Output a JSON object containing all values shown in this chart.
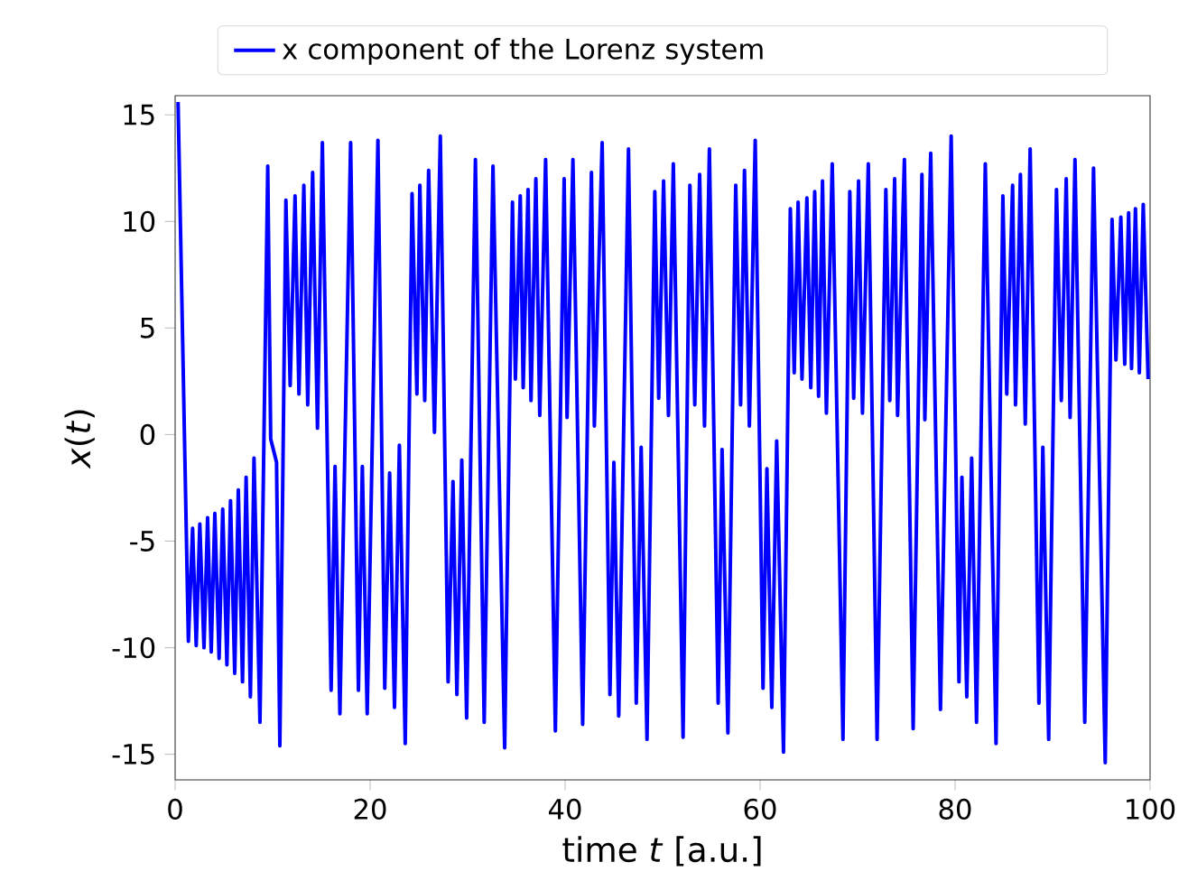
{
  "chart_data": {
    "type": "line",
    "xlabel": "time *t* [a.u.]",
    "ylabel": "*x*(*t*)",
    "xlim": [
      0,
      100
    ],
    "ylim": [
      -16.2,
      15.9
    ],
    "xticks": [
      0,
      20,
      40,
      60,
      80,
      100
    ],
    "yticks": [
      -15,
      -10,
      -5,
      0,
      5,
      10,
      15
    ],
    "legend": "top",
    "grid": false,
    "x": [
      0.3,
      1.36,
      1.79,
      2.16,
      2.53,
      2.96,
      3.33,
      3.7,
      4.07,
      4.51,
      4.88,
      5.31,
      5.68,
      6.11,
      6.48,
      6.91,
      7.28,
      7.72,
      8.09,
      8.7,
      9.5,
      9.8,
      10.4,
      10.74,
      11.36,
      11.8,
      12.3,
      12.7,
      13.2,
      13.6,
      14.1,
      14.6,
      15.1,
      16.0,
      16.4,
      16.9,
      18.0,
      18.8,
      19.2,
      19.7,
      20.8,
      21.5,
      22.0,
      22.5,
      23.0,
      23.6,
      24.3,
      24.8,
      25.1,
      25.6,
      26.0,
      26.6,
      27.2,
      28.0,
      28.5,
      28.9,
      29.4,
      29.9,
      30.8,
      31.7,
      32.6,
      33.8,
      34.6,
      34.9,
      35.4,
      35.7,
      36.2,
      36.5,
      37.0,
      37.4,
      38.0,
      39.0,
      39.9,
      40.2,
      40.8,
      41.8,
      42.7,
      43.0,
      43.8,
      44.6,
      45.0,
      45.5,
      46.5,
      47.3,
      47.8,
      48.4,
      49.2,
      49.6,
      50.1,
      50.6,
      51.1,
      52.1,
      52.8,
      53.3,
      53.8,
      54.3,
      54.8,
      55.7,
      56.1,
      56.7,
      57.5,
      58.0,
      58.4,
      58.9,
      59.5,
      60.3,
      60.7,
      61.2,
      61.7,
      62.4,
      63.1,
      63.5,
      63.9,
      64.3,
      64.8,
      65.2,
      65.6,
      66.0,
      66.4,
      66.8,
      67.4,
      68.5,
      69.2,
      69.6,
      70.1,
      70.5,
      71.1,
      72.0,
      72.9,
      73.3,
      73.8,
      74.1,
      74.8,
      75.7,
      76.6,
      76.9,
      77.5,
      78.5,
      79.6,
      80.4,
      80.7,
      81.2,
      81.7,
      82.2,
      83.1,
      84.2,
      84.9,
      85.3,
      85.9,
      86.2,
      86.7,
      87.2,
      87.7,
      88.6,
      89.0,
      89.6,
      90.4,
      90.9,
      91.4,
      91.8,
      92.3,
      93.3,
      94.2,
      95.4,
      96.1,
      96.5,
      97.0,
      97.4,
      97.8,
      98.1,
      98.5,
      98.9,
      99.3,
      99.8
    ],
    "series": [
      {
        "name": "x component of the Lorenz system",
        "color": "#0000ff",
        "values": [
          15.6,
          -9.7,
          -4.4,
          -9.9,
          -4.2,
          -10.0,
          -3.9,
          -10.2,
          -3.7,
          -10.5,
          -3.5,
          -10.8,
          -3.1,
          -11.2,
          -2.6,
          -11.6,
          -2.0,
          -12.3,
          -1.1,
          -13.5,
          12.6,
          -0.2,
          -1.3,
          -14.6,
          11.0,
          2.3,
          11.2,
          1.9,
          11.7,
          1.4,
          12.3,
          0.3,
          13.7,
          -12.0,
          -1.5,
          -13.1,
          13.7,
          -12.0,
          -1.5,
          -13.1,
          13.8,
          -11.9,
          -1.8,
          -12.8,
          -0.5,
          -14.5,
          11.3,
          1.9,
          11.7,
          1.6,
          12.4,
          0.1,
          14.0,
          -11.6,
          -2.2,
          -12.2,
          -1.2,
          -13.3,
          12.9,
          -13.5,
          12.6,
          -14.7,
          10.9,
          2.6,
          11.2,
          2.2,
          11.5,
          1.6,
          12.0,
          0.9,
          12.9,
          -13.9,
          12.0,
          0.8,
          12.9,
          -13.6,
          12.3,
          0.4,
          13.7,
          -12.2,
          -1.3,
          -13.2,
          13.4,
          -12.6,
          -0.6,
          -14.3,
          11.4,
          1.7,
          11.9,
          0.9,
          12.7,
          -14.2,
          11.7,
          1.4,
          12.2,
          0.4,
          13.4,
          -12.6,
          -0.7,
          -14.0,
          11.7,
          1.4,
          12.4,
          0.4,
          13.8,
          -11.9,
          -1.6,
          -12.8,
          -0.3,
          -14.9,
          10.6,
          2.9,
          10.9,
          2.6,
          11.1,
          2.2,
          11.4,
          1.8,
          11.9,
          1.0,
          12.7,
          -14.3,
          11.4,
          1.7,
          11.9,
          1.0,
          12.7,
          -14.3,
          11.5,
          1.6,
          12.0,
          0.9,
          12.9,
          -13.8,
          12.2,
          0.7,
          13.2,
          -12.9,
          14.0,
          -11.6,
          -2.0,
          -12.3,
          -1.1,
          -13.5,
          12.7,
          -14.5,
          11.2,
          1.9,
          11.7,
          1.4,
          12.2,
          0.5,
          13.4,
          -12.6,
          -0.6,
          -14.3,
          11.5,
          1.6,
          12.0,
          0.8,
          12.9,
          -13.5,
          12.5,
          -15.4,
          10.1,
          3.5,
          10.2,
          3.3,
          10.4,
          3.1,
          10.6,
          2.9,
          10.8,
          2.6
        ]
      }
    ]
  }
}
